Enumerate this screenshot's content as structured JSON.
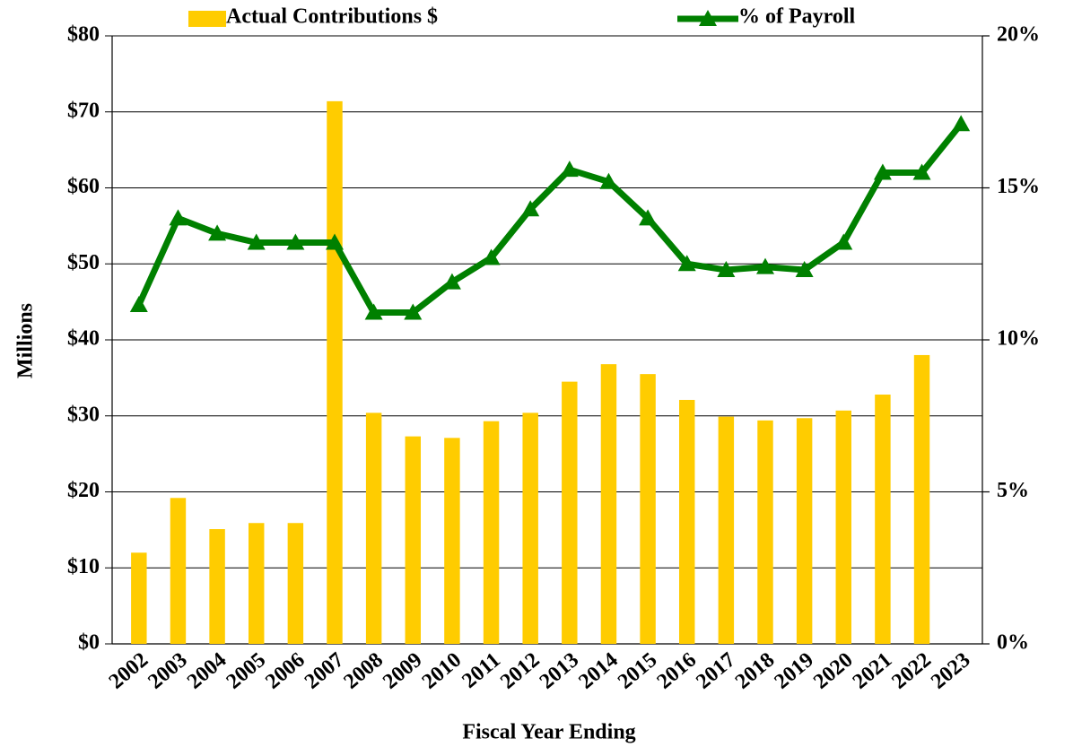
{
  "chart_data": {
    "type": "bar_line",
    "categories": [
      "2002",
      "2003",
      "2004",
      "2005",
      "2006",
      "2007",
      "2008",
      "2009",
      "2010",
      "2011",
      "2012",
      "2013",
      "2014",
      "2015",
      "2016",
      "2017",
      "2018",
      "2019",
      "2020",
      "2021",
      "2022",
      "2023"
    ],
    "series": [
      {
        "name": "Actual Contributions $",
        "color": "#FFCC00",
        "type": "bar",
        "values": [
          12.0,
          19.2,
          15.1,
          15.9,
          15.9,
          71.4,
          30.4,
          27.3,
          27.1,
          29.3,
          30.4,
          34.5,
          36.8,
          35.5,
          32.1,
          29.9,
          29.4,
          29.7,
          30.7,
          32.8,
          38.0,
          null
        ]
      },
      {
        "name": "% of Payroll",
        "color": "#008000",
        "type": "line",
        "axis": "y2",
        "values": [
          11.15,
          14.0,
          13.5,
          13.2,
          13.2,
          13.2,
          10.9,
          10.9,
          11.9,
          12.7,
          14.3,
          15.6,
          15.2,
          14.0,
          12.5,
          12.3,
          12.4,
          12.3,
          13.2,
          15.5,
          15.5,
          17.1
        ]
      }
    ],
    "ylabel": "Millions",
    "xlabel": "Fiscal Year Ending",
    "ylim": [
      0,
      80
    ],
    "yticks": [
      {
        "value": 0,
        "label": "$0"
      },
      {
        "value": 10,
        "label": "$10"
      },
      {
        "value": 20,
        "label": "$20"
      },
      {
        "value": 30,
        "label": "$30"
      },
      {
        "value": 40,
        "label": "$40"
      },
      {
        "value": 50,
        "label": "$50"
      },
      {
        "value": 60,
        "label": "$60"
      },
      {
        "value": 70,
        "label": "$70"
      },
      {
        "value": 80,
        "label": "$80"
      }
    ],
    "y2lim": [
      0,
      20
    ],
    "y2ticks": [
      {
        "value": 0,
        "label": "0%"
      },
      {
        "value": 5,
        "label": "5%"
      },
      {
        "value": 10,
        "label": "10%"
      },
      {
        "value": 15,
        "label": "15%"
      },
      {
        "value": 20,
        "label": "20%"
      }
    ],
    "grid": true,
    "legend": "top"
  }
}
